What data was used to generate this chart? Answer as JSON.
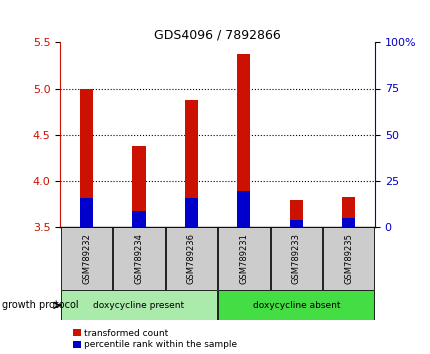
{
  "title": "GDS4096 / 7892866",
  "samples": [
    "GSM789232",
    "GSM789234",
    "GSM789236",
    "GSM789231",
    "GSM789233",
    "GSM789235"
  ],
  "red_top": [
    5.0,
    4.37,
    4.87,
    5.38,
    3.79,
    3.82
  ],
  "red_bottom": [
    3.5,
    3.5,
    3.5,
    3.5,
    3.5,
    3.5
  ],
  "blue_top": [
    3.81,
    3.67,
    3.81,
    3.89,
    3.57,
    3.59
  ],
  "blue_bottom": [
    3.5,
    3.5,
    3.5,
    3.5,
    3.5,
    3.5
  ],
  "ylim_left": [
    3.5,
    5.5
  ],
  "ylim_right": [
    0,
    100
  ],
  "yticks_left": [
    3.5,
    4.0,
    4.5,
    5.0,
    5.5
  ],
  "yticks_right": [
    0,
    25,
    50,
    75,
    100
  ],
  "ytick_labels_right": [
    "0",
    "25",
    "50",
    "75",
    "100%"
  ],
  "group1_label": "doxycycline present",
  "group2_label": "doxycycline absent",
  "group1_samples": [
    0,
    1,
    2
  ],
  "group2_samples": [
    3,
    4,
    5
  ],
  "protocol_label": "growth protocol",
  "legend_red": "transformed count",
  "legend_blue": "percentile rank within the sample",
  "bar_width": 0.25,
  "red_color": "#cc1100",
  "blue_color": "#0000cc",
  "group1_color": "#aaeaaa",
  "group2_color": "#44dd44",
  "title_color": "#000000",
  "left_axis_color": "#cc1100",
  "right_axis_color": "#0000cc",
  "bg_color": "#ffffff",
  "tick_bg": "#cccccc"
}
